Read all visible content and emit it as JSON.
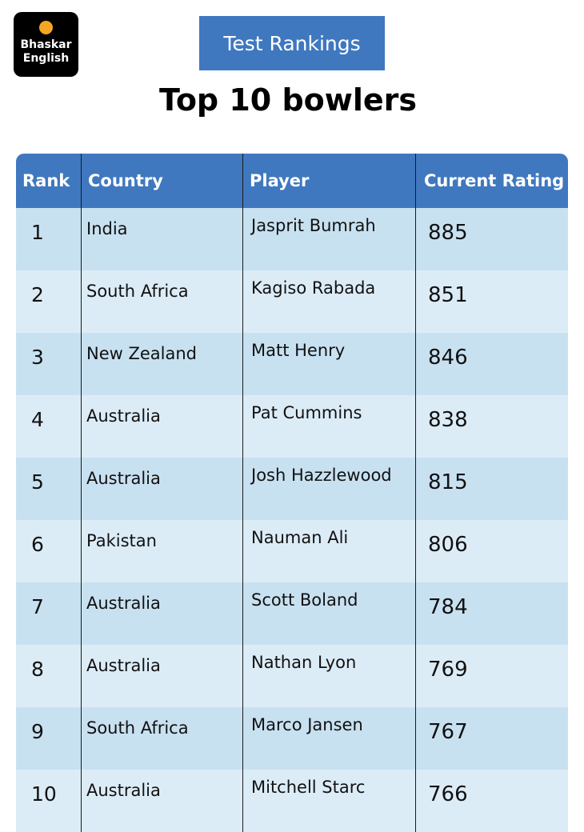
{
  "logo": {
    "line1": "Bhaskar",
    "line2": "English"
  },
  "banner": {
    "label": "Test Rankings"
  },
  "title": "Top 10 bowlers",
  "table": {
    "headers": [
      "Rank",
      "Country",
      "Player",
      "Current Rating"
    ],
    "rows": [
      {
        "rank": "1",
        "country": "India",
        "player": "Jasprit Bumrah",
        "rating": "885"
      },
      {
        "rank": "2",
        "country": "South Africa",
        "player": "Kagiso Rabada",
        "rating": "851"
      },
      {
        "rank": "3",
        "country": "New Zealand",
        "player": "Matt Henry",
        "rating": "846"
      },
      {
        "rank": "4",
        "country": "Australia",
        "player": "Pat Cummins",
        "rating": "838"
      },
      {
        "rank": "5",
        "country": "Australia",
        "player": "Josh Hazzlewood",
        "rating": "815"
      },
      {
        "rank": "6",
        "country": "Pakistan",
        "player": "Nauman Ali",
        "rating": "806"
      },
      {
        "rank": "7",
        "country": "Australia",
        "player": "Scott Boland",
        "rating": "784"
      },
      {
        "rank": "8",
        "country": "Australia",
        "player": "Nathan Lyon",
        "rating": "769"
      },
      {
        "rank": "9",
        "country": "South Africa",
        "player": "Marco Jansen",
        "rating": "767"
      },
      {
        "rank": "10",
        "country": "Australia",
        "player": "Mitchell Starc",
        "rating": "766"
      }
    ]
  },
  "colors": {
    "header_blue": "#3f78bf",
    "row_light": "#dcecf7",
    "row_dark": "#c8e1f1",
    "logo_dot": "#f5a623"
  }
}
